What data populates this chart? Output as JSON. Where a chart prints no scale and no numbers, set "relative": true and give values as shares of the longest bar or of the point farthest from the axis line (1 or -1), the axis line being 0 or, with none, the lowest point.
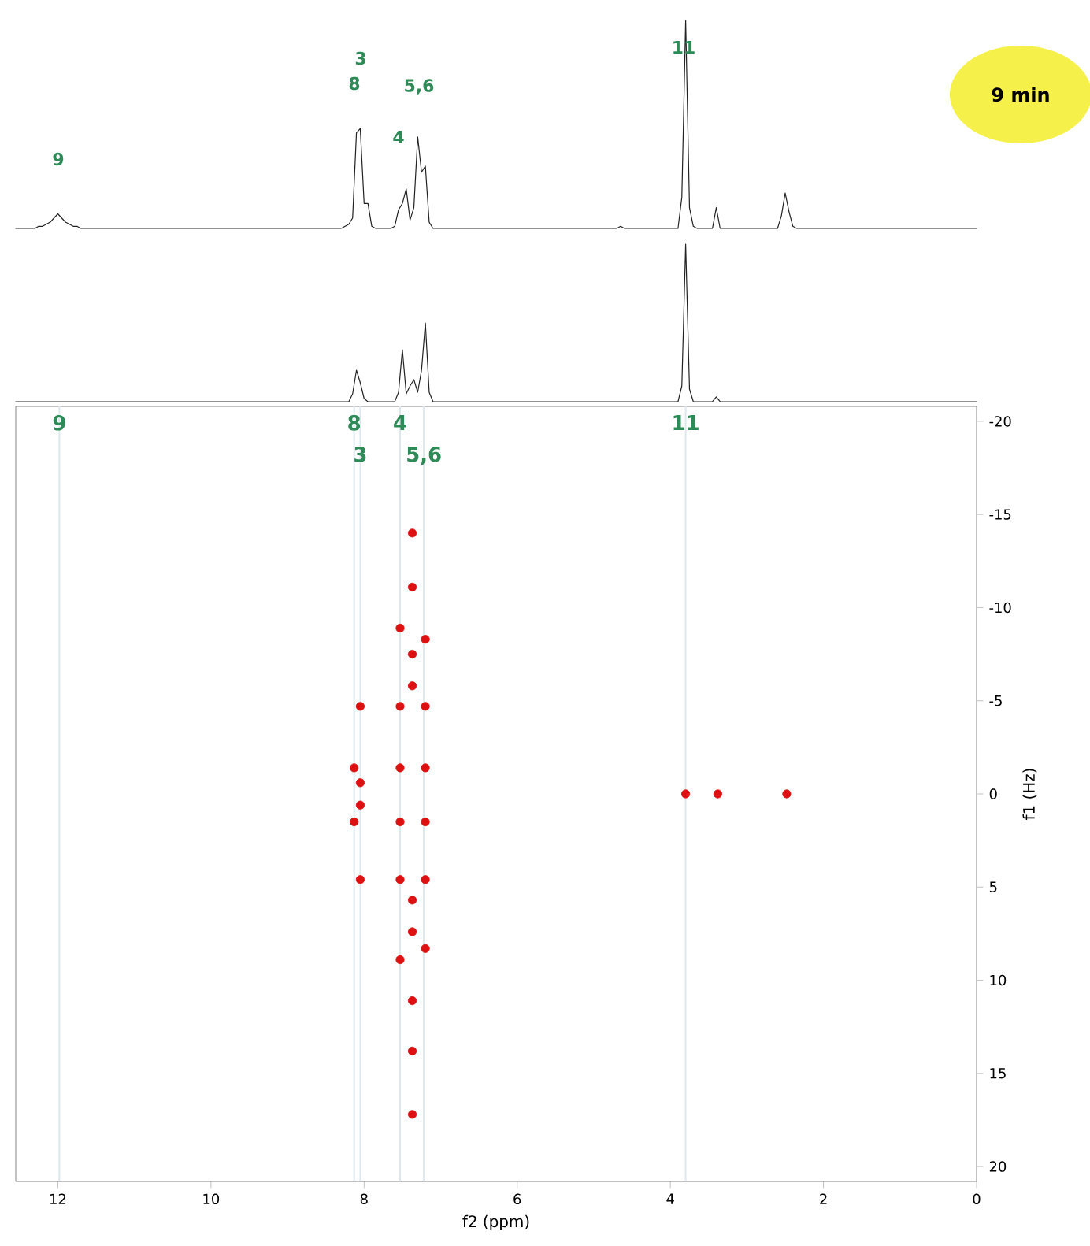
{
  "chart_data": [
    {
      "type": "line",
      "relative": true,
      "tick_labels": false,
      "marker": "none",
      "color": "#222222",
      "categories": [
        null,
        null,
        null,
        null,
        null,
        null,
        null,
        null,
        null,
        null,
        null,
        null,
        null,
        null,
        null,
        null,
        null,
        null,
        null,
        null,
        null,
        null,
        null,
        null,
        null,
        null,
        null,
        null,
        null,
        null,
        null,
        null,
        null,
        null,
        null,
        null,
        null,
        null,
        null,
        null,
        null,
        null,
        null,
        null,
        null,
        null,
        null,
        null,
        null,
        null,
        null,
        null,
        null,
        null,
        null,
        null,
        null,
        null,
        null,
        null,
        null,
        null,
        null,
        null,
        null,
        null,
        null,
        null,
        null,
        null,
        null,
        null,
        null,
        null,
        null,
        null,
        null,
        null,
        null,
        null,
        null,
        null,
        null,
        null,
        null,
        null,
        null,
        null,
        null,
        null,
        null,
        null,
        null,
        null,
        null,
        null,
        null,
        null,
        null,
        null,
        null,
        null,
        null,
        null,
        null,
        null,
        null,
        null,
        null,
        null,
        null,
        null,
        null,
        null,
        null,
        null,
        null,
        null,
        null,
        null,
        null,
        null,
        null,
        null,
        null,
        null,
        null,
        null,
        null,
        null,
        null,
        null,
        null,
        null,
        null,
        null,
        null,
        null,
        null,
        null,
        null,
        null,
        null,
        null,
        null,
        null,
        null,
        null,
        null,
        null,
        null,
        null,
        null,
        null,
        null,
        null,
        null,
        null,
        null,
        null,
        null,
        null,
        null,
        null,
        null,
        null,
        null,
        null,
        null,
        null,
        null,
        null,
        null,
        null,
        null,
        null,
        null,
        null,
        null,
        null,
        null,
        null,
        null,
        null,
        null,
        null,
        null,
        null,
        null,
        null,
        null,
        null,
        null,
        null,
        null,
        null,
        null,
        null,
        null,
        null,
        null,
        null,
        null,
        null,
        null,
        null,
        null,
        null,
        null,
        null,
        null,
        null,
        null,
        null,
        null,
        null,
        null,
        null,
        null,
        null,
        null,
        null,
        null,
        null,
        null,
        null,
        null,
        null,
        null,
        null,
        null,
        null,
        null,
        null,
        null,
        null,
        null,
        null,
        null,
        null,
        null,
        null,
        null,
        null,
        null,
        null,
        null,
        null,
        null,
        null,
        null,
        null
      ],
      "values": [
        0,
        0,
        0,
        0,
        0,
        0,
        0.01,
        0.01,
        0.02,
        0.03,
        0.05,
        0.07,
        0.05,
        0.03,
        0.02,
        0.01,
        0.01,
        0,
        0,
        0,
        0,
        0,
        0,
        0,
        0,
        0,
        0,
        0,
        0,
        0,
        0,
        0,
        0,
        0,
        0,
        0,
        0,
        0,
        0,
        0,
        0,
        0,
        0,
        0,
        0,
        0,
        0,
        0,
        0,
        0,
        0,
        0,
        0,
        0,
        0,
        0,
        0,
        0,
        0,
        0,
        0,
        0,
        0,
        0,
        0,
        0,
        0,
        0,
        0,
        0,
        0,
        0,
        0,
        0,
        0,
        0,
        0,
        0,
        0,
        0,
        0,
        0,
        0,
        0,
        0,
        0,
        0.01,
        0.02,
        0.05,
        0.46,
        0.48,
        0.12,
        0.12,
        0.01,
        0,
        0,
        0,
        0,
        0,
        0.01,
        0.09,
        0.12,
        0.19,
        0.04,
        0.1,
        0.44,
        0.27,
        0.3,
        0.03,
        0,
        0,
        0,
        0,
        0,
        0,
        0,
        0,
        0,
        0,
        0,
        0,
        0,
        0,
        0,
        0,
        0,
        0,
        0,
        0,
        0,
        0,
        0,
        0,
        0,
        0,
        0,
        0,
        0,
        0,
        0,
        0,
        0,
        0,
        0,
        0,
        0,
        0,
        0,
        0,
        0,
        0,
        0,
        0,
        0,
        0,
        0,
        0,
        0,
        0.01,
        0,
        0,
        0,
        0,
        0,
        0,
        0,
        0,
        0,
        0,
        0,
        0,
        0,
        0,
        0,
        0.15,
        1.0,
        0.1,
        0.01,
        0,
        0,
        0,
        0,
        0,
        0.1,
        0,
        0,
        0,
        0,
        0,
        0,
        0,
        0,
        0,
        0,
        0,
        0,
        0,
        0,
        0,
        0,
        0.06,
        0.17,
        0.08,
        0.01,
        0,
        0,
        0,
        0,
        0,
        0,
        0,
        0,
        0,
        0,
        0,
        0,
        0,
        0,
        0,
        0,
        0,
        0,
        0,
        0,
        0,
        0,
        0,
        0,
        0,
        0,
        0,
        0,
        0,
        0,
        0,
        0,
        0,
        0,
        0,
        0,
        0,
        0,
        0,
        0,
        0,
        0,
        0,
        0,
        0,
        0,
        0,
        0
      ],
      "annotations": [
        "9",
        "3",
        "8",
        "4",
        "5,6",
        "11",
        "9 min"
      ]
    },
    {
      "type": "line",
      "relative": true,
      "tick_labels": false,
      "marker": "none",
      "color": "#222222",
      "categories": [
        null,
        null,
        null,
        null,
        null,
        null,
        null,
        null,
        null,
        null,
        null,
        null,
        null,
        null,
        null,
        null,
        null,
        null,
        null,
        null,
        null,
        null,
        null,
        null,
        null,
        null,
        null,
        null,
        null,
        null,
        null,
        null,
        null,
        null,
        null,
        null,
        null,
        null,
        null,
        null,
        null,
        null,
        null,
        null,
        null,
        null,
        null,
        null,
        null,
        null,
        null,
        null,
        null,
        null,
        null,
        null,
        null,
        null,
        null,
        null,
        null,
        null,
        null,
        null,
        null,
        null,
        null,
        null,
        null,
        null,
        null,
        null,
        null,
        null,
        null,
        null,
        null,
        null,
        null,
        null,
        null,
        null,
        null,
        null,
        null,
        null,
        null,
        null,
        null,
        null,
        null,
        null,
        null,
        null,
        null,
        null,
        null,
        null,
        null,
        null,
        null,
        null,
        null,
        null,
        null,
        null,
        null,
        null,
        null,
        null,
        null,
        null,
        null,
        null,
        null,
        null,
        null,
        null,
        null,
        null,
        null,
        null,
        null,
        null,
        null,
        null,
        null,
        null,
        null,
        null,
        null,
        null,
        null,
        null,
        null,
        null,
        null,
        null,
        null,
        null,
        null,
        null,
        null,
        null,
        null,
        null,
        null,
        null,
        null,
        null,
        null,
        null,
        null,
        null,
        null,
        null,
        null,
        null,
        null,
        null,
        null,
        null,
        null,
        null,
        null,
        null,
        null,
        null,
        null,
        null,
        null,
        null,
        null,
        null,
        null,
        null,
        null,
        null,
        null,
        null,
        null,
        null,
        null,
        null,
        null,
        null,
        null,
        null,
        null,
        null,
        null,
        null,
        null,
        null,
        null,
        null,
        null,
        null,
        null,
        null,
        null,
        null,
        null,
        null,
        null,
        null,
        null,
        null,
        null,
        null,
        null,
        null,
        null,
        null,
        null,
        null,
        null,
        null,
        null,
        null,
        null,
        null,
        null,
        null,
        null,
        null,
        null,
        null,
        null,
        null,
        null,
        null,
        null,
        null,
        null,
        null,
        null,
        null,
        null,
        null,
        null,
        null,
        null,
        null,
        null,
        null,
        null,
        null,
        null,
        null,
        null,
        null
      ],
      "values": [
        0,
        0,
        0,
        0,
        0,
        0,
        0,
        0,
        0,
        0,
        0,
        0,
        0,
        0,
        0,
        0,
        0,
        0,
        0,
        0,
        0,
        0,
        0,
        0,
        0,
        0,
        0,
        0,
        0,
        0,
        0,
        0,
        0,
        0,
        0,
        0,
        0,
        0,
        0,
        0,
        0,
        0,
        0,
        0,
        0,
        0,
        0,
        0,
        0,
        0,
        0,
        0,
        0,
        0,
        0,
        0,
        0,
        0,
        0,
        0,
        0,
        0,
        0,
        0,
        0,
        0,
        0,
        0,
        0,
        0,
        0,
        0,
        0,
        0,
        0,
        0,
        0,
        0,
        0,
        0,
        0,
        0,
        0,
        0,
        0,
        0,
        0,
        0,
        0.05,
        0.2,
        0.12,
        0.02,
        0,
        0,
        0,
        0,
        0,
        0,
        0,
        0,
        0.06,
        0.33,
        0.05,
        0.1,
        0.14,
        0.06,
        0.2,
        0.5,
        0.06,
        0,
        0,
        0,
        0,
        0,
        0,
        0,
        0,
        0,
        0,
        0,
        0,
        0,
        0,
        0,
        0,
        0,
        0,
        0,
        0,
        0,
        0,
        0,
        0,
        0,
        0,
        0,
        0,
        0,
        0,
        0,
        0,
        0,
        0,
        0,
        0,
        0,
        0,
        0,
        0,
        0,
        0,
        0,
        0,
        0,
        0,
        0,
        0,
        0,
        0,
        0,
        0,
        0,
        0,
        0,
        0,
        0,
        0,
        0,
        0,
        0,
        0,
        0,
        0,
        0,
        0.1,
        1.0,
        0.08,
        0,
        0,
        0,
        0,
        0,
        0,
        0.03,
        0,
        0,
        0,
        0,
        0,
        0,
        0,
        0,
        0,
        0,
        0,
        0,
        0,
        0,
        0,
        0,
        0,
        0,
        0,
        0,
        0,
        0,
        0,
        0,
        0,
        0,
        0,
        0,
        0,
        0,
        0,
        0,
        0,
        0,
        0,
        0,
        0,
        0,
        0,
        0,
        0,
        0,
        0,
        0,
        0,
        0,
        0,
        0,
        0,
        0,
        0,
        0,
        0,
        0,
        0,
        0,
        0,
        0,
        0,
        0,
        0,
        0,
        0,
        0,
        0,
        0,
        0,
        0
      ]
    },
    {
      "type": "scatter",
      "marker": "circle",
      "color": "#dd1111",
      "xlabel": "f2 (ppm)",
      "ylabel": "f1 (Hz)",
      "xlim": [
        12.55,
        0
      ],
      "ylim": [
        20.8,
        -20.8
      ],
      "xticks": [
        12,
        10,
        8,
        6,
        4,
        2,
        0
      ],
      "yticks": [
        -20,
        -15,
        -10,
        -5,
        0,
        5,
        10,
        15,
        20
      ],
      "x": [
        8.05,
        8.13,
        8.05,
        8.05,
        8.13,
        8.05,
        7.53,
        7.53,
        7.53,
        7.53,
        7.53,
        7.53,
        7.2,
        7.2,
        7.2,
        7.2,
        7.2,
        7.2,
        7.37,
        7.37,
        7.37,
        7.37,
        7.37,
        7.37,
        7.37,
        7.37,
        7.37,
        3.8,
        3.38,
        2.48
      ],
      "values": [
        -4.7,
        -1.4,
        -0.6,
        0.6,
        1.5,
        4.6,
        -8.9,
        -4.7,
        -1.4,
        1.5,
        4.6,
        8.9,
        -8.3,
        -4.7,
        -1.4,
        1.5,
        4.6,
        8.3,
        -14.0,
        -11.1,
        -7.5,
        -5.8,
        5.7,
        7.4,
        11.1,
        13.8,
        17.2,
        0,
        0,
        0
      ],
      "ref_lines": [
        {
          "axis": "x",
          "value": 11.98,
          "color": "#dde8ec"
        },
        {
          "axis": "x",
          "value": 8.13,
          "color": "#dde8ec"
        },
        {
          "axis": "x",
          "value": 8.05,
          "color": "#dde8ec"
        },
        {
          "axis": "x",
          "value": 7.53,
          "color": "#dde8ec"
        },
        {
          "axis": "x",
          "value": 7.22,
          "color": "#dde8ec"
        },
        {
          "axis": "x",
          "value": 3.8,
          "color": "#dde8ec"
        }
      ],
      "annotations": [
        {
          "text": "9",
          "x": 11.98,
          "y": -20.8
        },
        {
          "text": "8",
          "x": 8.13,
          "y": -20.8
        },
        {
          "text": "3",
          "x": 8.05,
          "y": -20.8
        },
        {
          "text": "4",
          "x": 7.53,
          "y": -20.8
        },
        {
          "text": "5,6",
          "x": 7.22,
          "y": -20.8
        },
        {
          "text": "11",
          "x": 3.8,
          "y": -20.8
        }
      ]
    }
  ]
}
